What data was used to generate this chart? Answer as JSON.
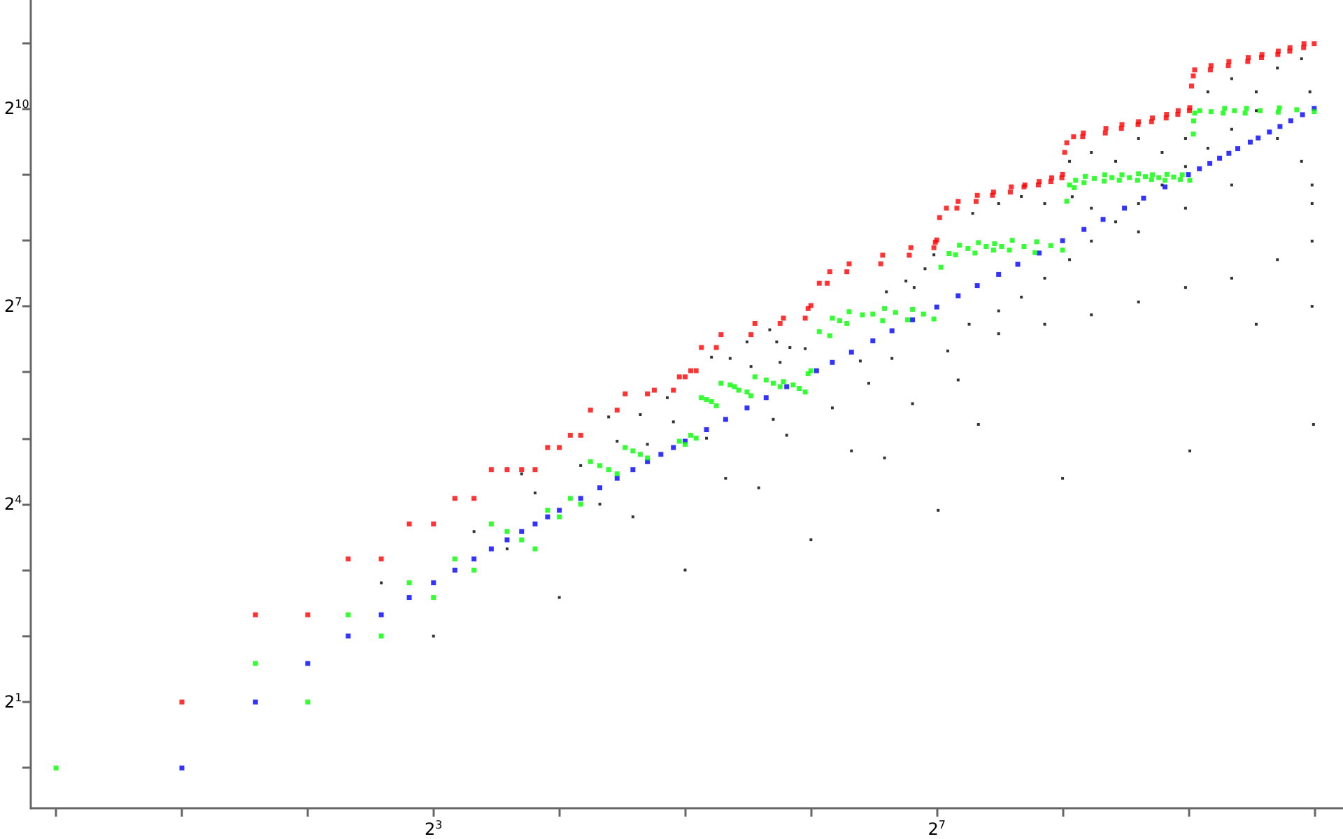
{
  "chart_data": {
    "type": "scatter",
    "log": "xy",
    "marker": "square",
    "xlim": [
      0.87,
      1200
    ],
    "ylim": [
      0.655,
      3200
    ],
    "xticks": [
      {
        "value": 1,
        "label": null
      },
      {
        "value": 2,
        "label": null
      },
      {
        "value": 4,
        "label": null
      },
      {
        "value": 8,
        "label": "2$^{3}$"
      },
      {
        "value": 16,
        "label": null
      },
      {
        "value": 32,
        "label": null
      },
      {
        "value": 64,
        "label": null
      },
      {
        "value": 128,
        "label": "2$^{7}$"
      },
      {
        "value": 256,
        "label": null
      },
      {
        "value": 512,
        "label": null
      },
      {
        "value": 1024,
        "label": null
      }
    ],
    "yticks": [
      {
        "value": 1,
        "label": null
      },
      {
        "value": 2,
        "label": "2$^{1}$"
      },
      {
        "value": 4,
        "label": null
      },
      {
        "value": 8,
        "label": null
      },
      {
        "value": 16,
        "label": "2$^{4}$"
      },
      {
        "value": 32,
        "label": null
      },
      {
        "value": 64,
        "label": null
      },
      {
        "value": 128,
        "label": "2$^{7}$"
      },
      {
        "value": 256,
        "label": null
      },
      {
        "value": 512,
        "label": null
      },
      {
        "value": 1024,
        "label": "2$^{10}$"
      },
      {
        "value": 2048,
        "label": null
      }
    ],
    "series": [
      {
        "color": "#000000",
        "x": [
          6,
          8,
          10,
          12,
          16,
          32,
          13,
          14,
          18,
          20,
          21,
          22,
          24,
          25,
          26,
          29,
          30,
          36,
          37,
          40,
          41,
          45,
          46,
          48,
          51,
          52,
          53,
          54,
          56,
          57,
          62,
          64,
          72,
          80,
          84,
          88,
          96,
          100,
          112,
          129,
          136,
          144,
          153,
          161,
          97,
          108,
          113,
          120,
          126,
          180,
          204,
          232,
          266,
          300,
          343,
          389,
          443,
          504,
          570,
          650,
          744,
          300,
          343,
          389,
          443,
          504,
          570,
          650,
          744,
          836,
          955,
          1000,
          836,
          955,
          1012,
          650,
          504,
          389,
          300,
          232,
          204,
          180,
          156,
          270,
          266,
          180,
          232,
          300,
          389,
          504,
          650,
          836,
          1012,
          1012,
          744,
          1012,
          1020,
          516,
          256
        ],
        "values": [
          7,
          4,
          12,
          10,
          6,
          8,
          22,
          18,
          24,
          16,
          40,
          31,
          14,
          41,
          30,
          49,
          38,
          32,
          75,
          21,
          74,
          88,
          68,
          19,
          100,
          39,
          88,
          71,
          33,
          83,
          82,
          11,
          44,
          28,
          72,
          57,
          26,
          74,
          46,
          15,
          80,
          59,
          106,
          37,
          149,
          167,
          156,
          190,
          220,
          122,
          141,
          172,
          209,
          254,
          311,
          377,
          458,
          556,
          674,
          823,
          1000,
          645,
          587,
          747,
          645,
          747,
          1219,
          1400,
          1219,
          1565,
          1725,
          1219,
          747,
          587,
          458,
          458,
          359,
          280,
          359,
          377,
          406,
          377,
          340,
          405,
          587,
          96,
          106,
          117,
          134,
          156,
          172,
          209,
          254,
          128,
          106,
          377,
          37,
          28,
          21
        ]
      },
      {
        "color": "#0000ff",
        "x": [
          2,
          3,
          4,
          5,
          6,
          7,
          8,
          9,
          10,
          11,
          12,
          13,
          14,
          15,
          16,
          18,
          20,
          22,
          24,
          26,
          28,
          30,
          32,
          36,
          40,
          45,
          50,
          56,
          66,
          72,
          80,
          90,
          100,
          112,
          128,
          144,
          160,
          180,
          200,
          225,
          256,
          288,
          320,
          360,
          400,
          450,
          512,
          544,
          576,
          608,
          640,
          672,
          720,
          752,
          800,
          848,
          900,
          960,
          1024
        ],
        "values": [
          1,
          2,
          3,
          4,
          5,
          6,
          7,
          8,
          9,
          10,
          11,
          12,
          13,
          14,
          15,
          17,
          19,
          21,
          23,
          25,
          27,
          29,
          31,
          35,
          39,
          44,
          49,
          55,
          65,
          71,
          79,
          89,
          99,
          111,
          127,
          143,
          159,
          179,
          199,
          224,
          255,
          287,
          319,
          359,
          399,
          449,
          511,
          543,
          575,
          607,
          639,
          671,
          719,
          751,
          799,
          847,
          899,
          959,
          1023
        ]
      },
      {
        "color": "#00ff00",
        "x": [
          1,
          3,
          4,
          5,
          6,
          7,
          8,
          9,
          10,
          11,
          12,
          13,
          14,
          15,
          16,
          17,
          18,
          19,
          20,
          21,
          22,
          23,
          24,
          25,
          26,
          31,
          32,
          33,
          34,
          35,
          36,
          37,
          38,
          39,
          41,
          42,
          43,
          45,
          46,
          47,
          50,
          52,
          54,
          55,
          58,
          60,
          62,
          63,
          64,
          67,
          71,
          72,
          75,
          78,
          79,
          85,
          90,
          95,
          96,
          102,
          109,
          112,
          119,
          126,
          131,
          137,
          142,
          145,
          152,
          158,
          161,
          168,
          175,
          176,
          183,
          191,
          194,
          207,
          220,
          222,
          240,
          256,
          262,
          266,
          273,
          275,
          288,
          290,
          305,
          322,
          323,
          336,
          350,
          355,
          370,
          387,
          389,
          404,
          418,
          420,
          435,
          450,
          455,
          472,
          490,
          495,
          516,
          526,
          527,
          530,
          545,
          580,
          620,
          625,
          660,
          700,
          705,
          760,
          840,
          845,
          930,
          1024
        ],
        "values": [
          1,
          3,
          2,
          5,
          4,
          7,
          6,
          9,
          8,
          13,
          12,
          11,
          10,
          15,
          14,
          17,
          16,
          25,
          24,
          23,
          22,
          29,
          28,
          27,
          26,
          31,
          30,
          33,
          32,
          49,
          48,
          47,
          45,
          57,
          56,
          55,
          53,
          52,
          50,
          61,
          59,
          57,
          55,
          58,
          56,
          54,
          52,
          63,
          65,
          98,
          94,
          113,
          110,
          107,
          121,
          117,
          118,
          110,
          125,
          120,
          111,
          124,
          118,
          112,
          193,
          223,
          220,
          243,
          235,
          224,
          250,
          240,
          231,
          247,
          240,
          231,
          256,
          240,
          225,
          252,
          242,
          231,
          386,
          458,
          445,
          481,
          469,
          501,
          490,
          477,
          510,
          495,
          481,
          510,
          495,
          481,
          515,
          500,
          485,
          510,
          495,
          481,
          512,
          498,
          485,
          510,
          481,
          782,
          898,
          975,
          1000,
          990,
          975,
          1024,
          1000,
          975,
          1024,
          1000,
          985,
          1030,
          1010,
          990
        ]
      },
      {
        "color": "#ff0000",
        "x": [
          2,
          3,
          4,
          5,
          6,
          7,
          8,
          9,
          10,
          11,
          12,
          13,
          14,
          15,
          16,
          17,
          18,
          19,
          22,
          23,
          26,
          27,
          30,
          31,
          32,
          33,
          34,
          35,
          38,
          39,
          46,
          47,
          54,
          55,
          62,
          63,
          64,
          67,
          70,
          71,
          78,
          79,
          94,
          95,
          110,
          111,
          126,
          127,
          128,
          130,
          135,
          143,
          144,
          159,
          160,
          174,
          175,
          192,
          193,
          207,
          208,
          224,
          225,
          240,
          241,
          255,
          256,
          259,
          262,
          272,
          286,
          287,
          324,
          325,
          354,
          355,
          388,
          389,
          418,
          420,
          453,
          454,
          483,
          484,
          515,
          516,
          521,
          526,
          530,
          578,
          580,
          638,
          640,
          710,
          712,
          766,
          768,
          838,
          840,
          895,
          896,
          966,
          968,
          1024
        ],
        "values": [
          2,
          5,
          5,
          9,
          9,
          13,
          13,
          17,
          17,
          23,
          23,
          23,
          23,
          29,
          29,
          33,
          33,
          43,
          43,
          51,
          51,
          53,
          53,
          61,
          61,
          65,
          65,
          83,
          83,
          95,
          95,
          107,
          107,
          113,
          113,
          125,
          129,
          163,
          163,
          184,
          184,
          200,
          200,
          219,
          219,
          237,
          237,
          251,
          257,
          325,
          359,
          359,
          385,
          385,
          411,
          411,
          425,
          425,
          449,
          449,
          458,
          458,
          475,
          475,
          494,
          494,
          512,
          645,
          714,
          760,
          760,
          791,
          791,
          830,
          830,
          864,
          864,
          891,
          891,
          926,
          926,
          962,
          962,
          1000,
          1000,
          1033,
          1296,
          1440,
          1536,
          1536,
          1606,
          1606,
          1677,
          1677,
          1745,
          1745,
          1805,
          1805,
          1870,
          1870,
          1940,
          1940,
          2020,
          2020
        ]
      }
    ]
  }
}
